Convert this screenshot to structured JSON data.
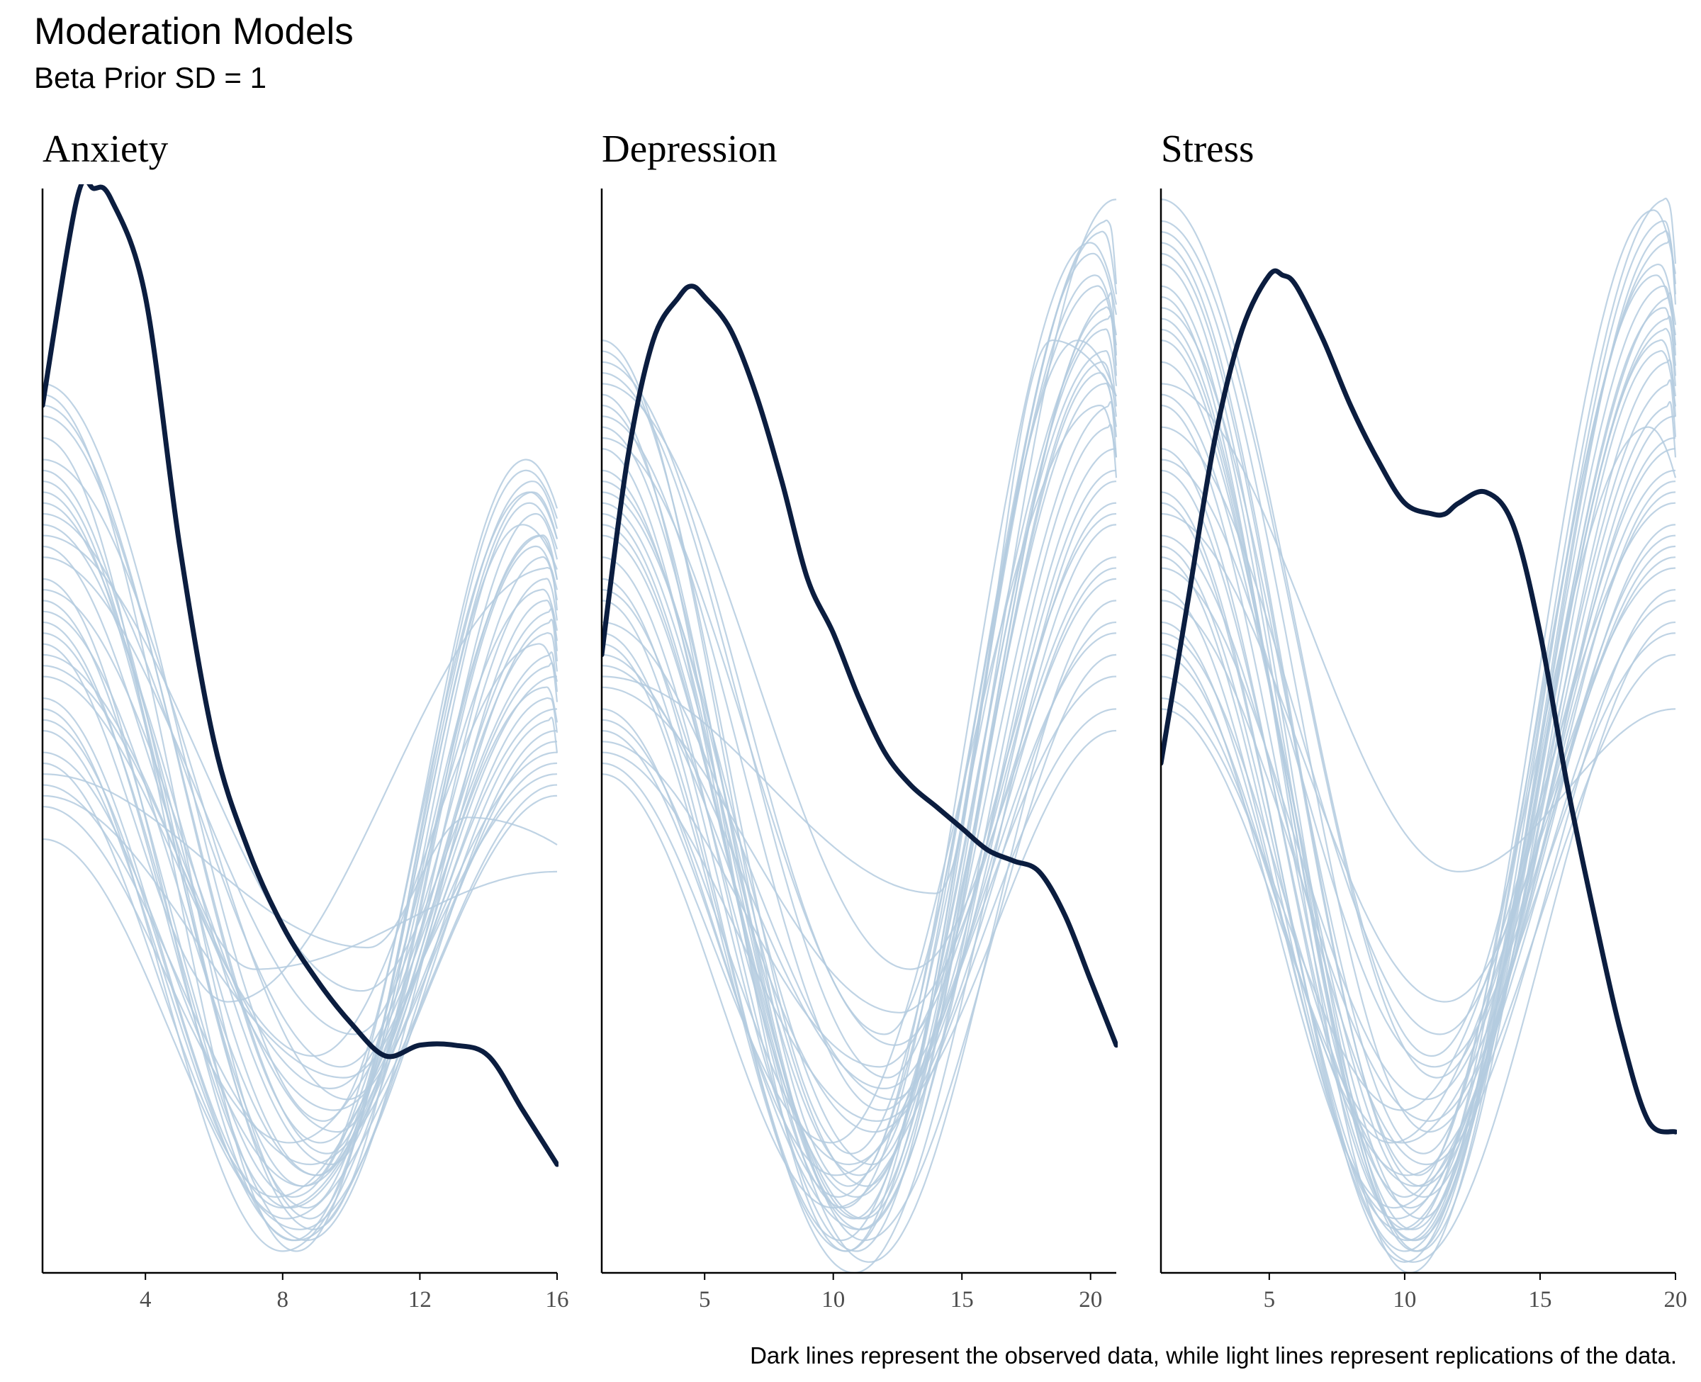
{
  "title": "Moderation Models",
  "subtitle": "Beta Prior SD = 1",
  "caption": "Dark lines represent the observed data, while light lines represent replications of the data.",
  "colors": {
    "observed": "#0b1d3f",
    "replicated": "#b4cbdf",
    "axis": "#000000",
    "tick_text": "#4d4d4d"
  },
  "chart_data": [
    {
      "type": "line",
      "panel": "Anxiety",
      "xlim": [
        1,
        16
      ],
      "ylim": [
        0,
        1
      ],
      "xticks": [
        4,
        8,
        12,
        16
      ],
      "grid": false,
      "y_axis_labels": false,
      "observed": {
        "x": [
          1,
          2,
          2.5,
          3,
          4,
          5,
          6,
          7,
          8,
          9,
          10,
          11,
          12,
          13,
          14,
          15,
          16
        ],
        "y": [
          0.8,
          0.99,
          1.0,
          0.99,
          0.9,
          0.67,
          0.49,
          0.39,
          0.32,
          0.27,
          0.23,
          0.2,
          0.21,
          0.21,
          0.2,
          0.15,
          0.1
        ]
      },
      "replications_note": "about 50 light replication curves, each starting between 0.35 and 0.82 at the left, dipping to 0.02-0.35 between x = 7 and 10, and rising to 0.45-0.75 near x = 15-16",
      "replications": [
        {
          "a": 0.72,
          "m": 0.08,
          "xm": 8.6,
          "b": 0.72,
          "xp": 15.2
        },
        {
          "a": 0.64,
          "m": 0.03,
          "xm": 8.3,
          "b": 0.68,
          "xp": 15.6
        },
        {
          "a": 0.8,
          "m": 0.12,
          "xm": 9.1,
          "b": 0.61,
          "xp": 15.9
        },
        {
          "a": 0.52,
          "m": 0.02,
          "xm": 8.0,
          "b": 0.55,
          "xp": 16.0
        },
        {
          "a": 0.58,
          "m": 0.25,
          "xm": 6.4,
          "b": 0.65,
          "xp": 15.8
        },
        {
          "a": 0.81,
          "m": 0.05,
          "xm": 8.8,
          "b": 0.74,
          "xp": 15.1
        },
        {
          "a": 0.46,
          "m": 0.3,
          "xm": 10.5,
          "b": 0.42,
          "xp": 13.4
        },
        {
          "a": 0.6,
          "m": 0.06,
          "xm": 8.2,
          "b": 0.52,
          "xp": 16.0
        },
        {
          "a": 0.69,
          "m": 0.1,
          "xm": 9.4,
          "b": 0.7,
          "xp": 15.4
        },
        {
          "a": 0.47,
          "m": 0.07,
          "xm": 7.8,
          "b": 0.48,
          "xp": 16.0
        },
        {
          "a": 0.75,
          "m": 0.16,
          "xm": 9.9,
          "b": 0.62,
          "xp": 15.7
        },
        {
          "a": 0.4,
          "m": 0.04,
          "xm": 8.5,
          "b": 0.5,
          "xp": 16.0
        },
        {
          "a": 0.55,
          "m": 0.2,
          "xm": 8.9,
          "b": 0.58,
          "xp": 15.5
        },
        {
          "a": 0.77,
          "m": 0.02,
          "xm": 8.4,
          "b": 0.73,
          "xp": 15.3
        },
        {
          "a": 0.63,
          "m": 0.13,
          "xm": 9.6,
          "b": 0.66,
          "xp": 15.6
        },
        {
          "a": 0.5,
          "m": 0.05,
          "xm": 8.1,
          "b": 0.44,
          "xp": 16.0
        },
        {
          "a": 0.67,
          "m": 0.28,
          "xm": 7.2,
          "b": 0.37,
          "xp": 16.0
        },
        {
          "a": 0.71,
          "m": 0.09,
          "xm": 9.0,
          "b": 0.69,
          "xp": 15.0
        },
        {
          "a": 0.44,
          "m": 0.18,
          "xm": 9.8,
          "b": 0.53,
          "xp": 15.8
        },
        {
          "a": 0.59,
          "m": 0.03,
          "xm": 8.7,
          "b": 0.6,
          "xp": 15.9
        },
        {
          "a": 0.79,
          "m": 0.11,
          "xm": 9.3,
          "b": 0.71,
          "xp": 15.2
        },
        {
          "a": 0.53,
          "m": 0.06,
          "xm": 8.0,
          "b": 0.47,
          "xp": 16.0
        },
        {
          "a": 0.66,
          "m": 0.22,
          "xm": 10.1,
          "b": 0.64,
          "xp": 15.7
        },
        {
          "a": 0.48,
          "m": 0.08,
          "xm": 8.6,
          "b": 0.56,
          "xp": 15.9
        },
        {
          "a": 0.74,
          "m": 0.04,
          "xm": 8.9,
          "b": 0.67,
          "xp": 15.4
        },
        {
          "a": 0.57,
          "m": 0.15,
          "xm": 9.5,
          "b": 0.49,
          "xp": 16.0
        },
        {
          "a": 0.62,
          "m": 0.07,
          "xm": 8.3,
          "b": 0.63,
          "xp": 15.6
        },
        {
          "a": 0.7,
          "m": 0.19,
          "xm": 9.7,
          "b": 0.59,
          "xp": 15.8
        },
        {
          "a": 0.45,
          "m": 0.1,
          "xm": 8.8,
          "b": 0.45,
          "xp": 16.0
        },
        {
          "a": 0.82,
          "m": 0.14,
          "xm": 9.2,
          "b": 0.75,
          "xp": 15.1
        },
        {
          "a": 0.51,
          "m": 0.03,
          "xm": 8.4,
          "b": 0.51,
          "xp": 15.9
        },
        {
          "a": 0.68,
          "m": 0.26,
          "xm": 10.3,
          "b": 0.57,
          "xp": 15.9
        },
        {
          "a": 0.61,
          "m": 0.09,
          "xm": 9.0,
          "b": 0.68,
          "xp": 15.5
        },
        {
          "a": 0.43,
          "m": 0.12,
          "xm": 8.2,
          "b": 0.46,
          "xp": 16.0
        },
        {
          "a": 0.73,
          "m": 0.06,
          "xm": 8.7,
          "b": 0.72,
          "xp": 15.3
        },
        {
          "a": 0.56,
          "m": 0.17,
          "xm": 9.4,
          "b": 0.54,
          "xp": 15.7
        }
      ]
    },
    {
      "type": "line",
      "panel": "Depression",
      "xlim": [
        1,
        21
      ],
      "ylim": [
        0,
        1
      ],
      "xticks": [
        5,
        10,
        15,
        20
      ],
      "grid": false,
      "y_axis_labels": false,
      "observed": {
        "x": [
          1,
          2,
          3,
          4,
          4.5,
          5,
          6,
          7,
          8,
          9,
          10,
          11,
          12,
          13,
          14,
          15,
          16,
          17,
          18,
          19,
          20,
          21
        ],
        "y": [
          0.57,
          0.75,
          0.86,
          0.9,
          0.91,
          0.9,
          0.87,
          0.81,
          0.73,
          0.64,
          0.59,
          0.53,
          0.48,
          0.45,
          0.43,
          0.41,
          0.39,
          0.38,
          0.37,
          0.33,
          0.27,
          0.21
        ]
      },
      "replications_note": "about 50 light replication curves, each starting between 0.45 and 0.86 at the left, dipping to 0.0-0.3 between x = 9 and 13, and rising to 0.45-1.0 near x = 19-21",
      "replications": [
        {
          "a": 0.8,
          "m": 0.05,
          "xm": 10.8,
          "b": 0.92,
          "xp": 20.2
        },
        {
          "a": 0.58,
          "m": 0.02,
          "xm": 10.5,
          "b": 0.82,
          "xp": 20.6
        },
        {
          "a": 0.72,
          "m": 0.1,
          "xm": 11.5,
          "b": 0.99,
          "xp": 21.0
        },
        {
          "a": 0.5,
          "m": 0.04,
          "xm": 11.0,
          "b": 0.76,
          "xp": 21.0
        },
        {
          "a": 0.84,
          "m": 0.22,
          "xm": 12.0,
          "b": 0.86,
          "xp": 19.5
        },
        {
          "a": 0.64,
          "m": 0.07,
          "xm": 10.2,
          "b": 0.88,
          "xp": 20.8
        },
        {
          "a": 0.55,
          "m": 0.35,
          "xm": 14.0,
          "b": 0.86,
          "xp": 18.5
        },
        {
          "a": 0.78,
          "m": 0.03,
          "xm": 11.2,
          "b": 0.57,
          "xp": 21.0
        },
        {
          "a": 0.47,
          "m": 0.12,
          "xm": 9.9,
          "b": 0.8,
          "xp": 20.4
        },
        {
          "a": 0.69,
          "m": 0.01,
          "xm": 11.4,
          "b": 0.62,
          "xp": 21.0
        },
        {
          "a": 0.86,
          "m": 0.08,
          "xm": 10.6,
          "b": 0.95,
          "xp": 20.0
        },
        {
          "a": 0.6,
          "m": 0.16,
          "xm": 12.3,
          "b": 0.73,
          "xp": 21.0
        },
        {
          "a": 0.74,
          "m": 0.05,
          "xm": 11.0,
          "b": 0.9,
          "xp": 20.9
        },
        {
          "a": 0.52,
          "m": 0.09,
          "xm": 10.1,
          "b": 0.55,
          "xp": 21.0
        },
        {
          "a": 0.82,
          "m": 0.28,
          "xm": 13.0,
          "b": 0.64,
          "xp": 21.0
        },
        {
          "a": 0.66,
          "m": 0.02,
          "xm": 10.9,
          "b": 0.84,
          "xp": 20.5
        },
        {
          "a": 0.49,
          "m": 0.19,
          "xm": 11.8,
          "b": 0.7,
          "xp": 21.0
        },
        {
          "a": 0.76,
          "m": 0.06,
          "xm": 10.4,
          "b": 0.97,
          "xp": 20.7
        },
        {
          "a": 0.57,
          "m": 0.13,
          "xm": 11.6,
          "b": 0.6,
          "xp": 21.0
        },
        {
          "a": 0.7,
          "m": 0.04,
          "xm": 11.1,
          "b": 0.78,
          "xp": 20.8
        },
        {
          "a": 0.85,
          "m": 0.11,
          "xm": 10.7,
          "b": 0.91,
          "xp": 20.3
        },
        {
          "a": 0.54,
          "m": 0.24,
          "xm": 12.6,
          "b": 0.66,
          "xp": 21.0
        },
        {
          "a": 0.62,
          "m": 0.03,
          "xm": 10.3,
          "b": 0.85,
          "xp": 20.6
        },
        {
          "a": 0.79,
          "m": 0.15,
          "xm": 11.9,
          "b": 0.74,
          "xp": 21.0
        },
        {
          "a": 0.46,
          "m": 0.06,
          "xm": 10.0,
          "b": 0.52,
          "xp": 21.0
        },
        {
          "a": 0.73,
          "m": 0.08,
          "xm": 11.3,
          "b": 0.94,
          "xp": 20.1
        },
        {
          "a": 0.59,
          "m": 0.0,
          "xm": 10.8,
          "b": 0.69,
          "xp": 21.0
        },
        {
          "a": 0.83,
          "m": 0.18,
          "xm": 12.1,
          "b": 0.83,
          "xp": 20.4
        },
        {
          "a": 0.51,
          "m": 0.1,
          "xm": 10.6,
          "b": 0.59,
          "xp": 21.0
        },
        {
          "a": 0.68,
          "m": 0.05,
          "xm": 11.2,
          "b": 0.89,
          "xp": 20.7
        },
        {
          "a": 0.77,
          "m": 0.21,
          "xm": 12.4,
          "b": 0.71,
          "xp": 21.0
        },
        {
          "a": 0.63,
          "m": 0.07,
          "xm": 10.9,
          "b": 0.8,
          "xp": 20.9
        },
        {
          "a": 0.48,
          "m": 0.14,
          "xm": 11.7,
          "b": 0.5,
          "xp": 21.0
        },
        {
          "a": 0.81,
          "m": 0.02,
          "xm": 10.5,
          "b": 0.96,
          "xp": 20.5
        },
        {
          "a": 0.56,
          "m": 0.17,
          "xm": 12.0,
          "b": 0.65,
          "xp": 21.0
        },
        {
          "a": 0.71,
          "m": 0.09,
          "xm": 11.0,
          "b": 0.87,
          "xp": 20.6
        }
      ]
    },
    {
      "type": "line",
      "panel": "Stress",
      "xlim": [
        1,
        20
      ],
      "ylim": [
        0,
        1
      ],
      "xticks": [
        5,
        10,
        15,
        20
      ],
      "grid": false,
      "y_axis_labels": false,
      "observed": {
        "x": [
          1,
          2,
          3,
          4,
          5,
          5.5,
          6,
          7,
          8,
          9,
          10,
          11,
          11.5,
          12,
          13,
          14,
          15,
          16,
          17,
          18,
          19,
          20
        ],
        "y": [
          0.47,
          0.62,
          0.77,
          0.87,
          0.92,
          0.92,
          0.91,
          0.86,
          0.8,
          0.75,
          0.71,
          0.7,
          0.7,
          0.71,
          0.72,
          0.69,
          0.59,
          0.45,
          0.33,
          0.22,
          0.14,
          0.13
        ]
      },
      "replications_note": "about 50 light replication curves, each starting between 0.5 and 0.99 at the left, dipping to 0.0-0.37 between x = 9 and 12, and rising to 0.55-0.99 near x = 18-20",
      "replications": [
        {
          "a": 0.88,
          "m": 0.03,
          "xm": 10.3,
          "b": 0.97,
          "xp": 19.6
        },
        {
          "a": 0.72,
          "m": 0.01,
          "xm": 10.0,
          "b": 0.88,
          "xp": 19.8
        },
        {
          "a": 0.95,
          "m": 0.08,
          "xm": 10.6,
          "b": 0.79,
          "xp": 20.0
        },
        {
          "a": 0.63,
          "m": 0.05,
          "xm": 9.7,
          "b": 0.68,
          "xp": 20.0
        },
        {
          "a": 0.82,
          "m": 0.37,
          "xm": 12.0,
          "b": 0.52,
          "xp": 20.0
        },
        {
          "a": 0.91,
          "m": 0.02,
          "xm": 10.4,
          "b": 0.93,
          "xp": 19.4
        },
        {
          "a": 0.57,
          "m": 0.12,
          "xm": 9.5,
          "b": 0.65,
          "xp": 20.0
        },
        {
          "a": 0.99,
          "m": 0.2,
          "xm": 11.0,
          "b": 0.78,
          "xp": 19.0
        },
        {
          "a": 0.76,
          "m": 0.04,
          "xm": 10.1,
          "b": 0.99,
          "xp": 19.7
        },
        {
          "a": 0.68,
          "m": 0.1,
          "xm": 10.8,
          "b": 0.63,
          "xp": 20.0
        },
        {
          "a": 0.86,
          "m": 0.06,
          "xm": 10.2,
          "b": 0.9,
          "xp": 19.9
        },
        {
          "a": 0.53,
          "m": 0.15,
          "xm": 9.9,
          "b": 0.71,
          "xp": 20.0
        },
        {
          "a": 0.93,
          "m": 0.02,
          "xm": 10.5,
          "b": 0.85,
          "xp": 19.5
        },
        {
          "a": 0.7,
          "m": 0.25,
          "xm": 11.5,
          "b": 0.66,
          "xp": 20.0
        },
        {
          "a": 0.8,
          "m": 0.07,
          "xm": 10.0,
          "b": 0.95,
          "xp": 19.8
        },
        {
          "a": 0.6,
          "m": 0.01,
          "xm": 10.3,
          "b": 0.6,
          "xp": 20.0
        },
        {
          "a": 0.89,
          "m": 0.11,
          "xm": 10.7,
          "b": 0.92,
          "xp": 19.3
        },
        {
          "a": 0.66,
          "m": 0.04,
          "xm": 9.8,
          "b": 0.74,
          "xp": 20.0
        },
        {
          "a": 0.97,
          "m": 0.18,
          "xm": 11.2,
          "b": 0.82,
          "xp": 19.9
        },
        {
          "a": 0.74,
          "m": 0.03,
          "xm": 10.4,
          "b": 0.89,
          "xp": 19.6
        },
        {
          "a": 0.55,
          "m": 0.09,
          "xm": 10.1,
          "b": 0.57,
          "xp": 20.0
        },
        {
          "a": 0.84,
          "m": 0.05,
          "xm": 10.6,
          "b": 0.96,
          "xp": 19.7
        },
        {
          "a": 0.62,
          "m": 0.14,
          "xm": 10.9,
          "b": 0.69,
          "xp": 20.0
        },
        {
          "a": 0.9,
          "m": 0.0,
          "xm": 10.2,
          "b": 0.86,
          "xp": 19.5
        },
        {
          "a": 0.78,
          "m": 0.22,
          "xm": 11.3,
          "b": 0.76,
          "xp": 20.0
        },
        {
          "a": 0.58,
          "m": 0.06,
          "xm": 9.6,
          "b": 0.62,
          "xp": 20.0
        },
        {
          "a": 0.94,
          "m": 0.09,
          "xm": 10.5,
          "b": 0.98,
          "xp": 19.2
        },
        {
          "a": 0.71,
          "m": 0.02,
          "xm": 10.0,
          "b": 0.8,
          "xp": 19.9
        },
        {
          "a": 0.65,
          "m": 0.16,
          "xm": 10.8,
          "b": 0.72,
          "xp": 20.0
        },
        {
          "a": 0.87,
          "m": 0.04,
          "xm": 10.3,
          "b": 0.91,
          "xp": 19.6
        },
        {
          "a": 0.52,
          "m": 0.12,
          "xm": 9.9,
          "b": 0.59,
          "xp": 20.0
        },
        {
          "a": 0.81,
          "m": 0.07,
          "xm": 10.7,
          "b": 0.84,
          "xp": 19.8
        },
        {
          "a": 0.96,
          "m": 0.13,
          "xm": 10.9,
          "b": 0.73,
          "xp": 20.0
        },
        {
          "a": 0.67,
          "m": 0.03,
          "xm": 10.1,
          "b": 0.87,
          "xp": 19.7
        },
        {
          "a": 0.75,
          "m": 0.19,
          "xm": 11.1,
          "b": 0.67,
          "xp": 20.0
        },
        {
          "a": 0.59,
          "m": 0.08,
          "xm": 10.4,
          "b": 0.77,
          "xp": 20.0
        }
      ]
    }
  ]
}
